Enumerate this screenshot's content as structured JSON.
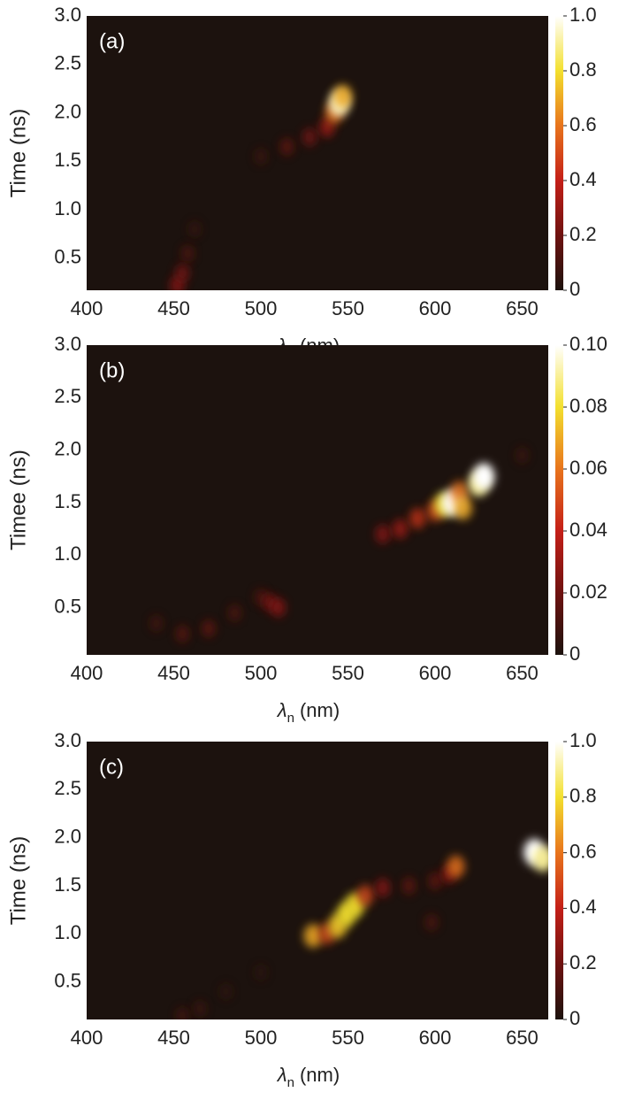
{
  "chart_data": [
    {
      "type": "heatmap",
      "annotation": "(a)",
      "x_label_symbol": "λ",
      "x_label_subscript": "n",
      "x_label_unit": "(nm)",
      "y_label": "Time (ns)",
      "xlim": [
        400,
        665
      ],
      "xticks": [
        400,
        450,
        500,
        550,
        600,
        650
      ],
      "ylim": [
        0.17,
        3.0
      ],
      "yticks": [
        0.5,
        {
          "value": 1,
          "label": "1.0"
        },
        1.5,
        {
          "value": 2,
          "label": "2.0"
        },
        2.5,
        {
          "value": 3,
          "label": "3.0"
        }
      ],
      "zlim": [
        0,
        1
      ],
      "zticks": [
        0,
        0.2,
        0.4,
        0.6,
        0.8,
        {
          "value": 1,
          "label": "1.0"
        }
      ],
      "colormap": [
        "#1c120e",
        "#6e1210",
        "#c41f18",
        "#e8741c",
        "#f3e02e",
        "#ffffff"
      ],
      "points": {
        "x": [
          452,
          455,
          458,
          462,
          500,
          515,
          528,
          538,
          542,
          545,
          547
        ],
        "y": [
          0.22,
          0.35,
          0.55,
          0.8,
          1.55,
          1.65,
          1.75,
          1.85,
          2.0,
          2.1,
          2.17
        ],
        "values": [
          0.3,
          0.25,
          0.15,
          0.08,
          0.1,
          0.2,
          0.25,
          0.35,
          0.6,
          0.95,
          0.7
        ]
      }
    },
    {
      "type": "heatmap",
      "annotation": "(b)",
      "x_label_symbol": "λ",
      "x_label_subscript": "n",
      "x_label_unit": "(nm)",
      "y_label": "Timee (ns)",
      "xlim": [
        400,
        665
      ],
      "xticks": [
        400,
        450,
        500,
        550,
        600,
        650
      ],
      "ylim": [
        0.05,
        3.0
      ],
      "yticks": [
        0.5,
        {
          "value": 1,
          "label": "1.0"
        },
        1.5,
        {
          "value": 2,
          "label": "2.0"
        },
        2.5,
        {
          "value": 3,
          "label": "3.0"
        }
      ],
      "zlim": [
        0,
        0.1
      ],
      "zticks": [
        0,
        0.02,
        0.04,
        0.06,
        0.08,
        {
          "value": 0.1,
          "label": "0.10"
        }
      ],
      "colormap": [
        "#1c120e",
        "#6e1210",
        "#c41f18",
        "#e8741c",
        "#f3e02e",
        "#ffffff"
      ],
      "points": {
        "x": [
          440,
          455,
          470,
          485,
          500,
          505,
          510,
          570,
          580,
          590,
          600,
          605,
          610,
          614,
          616,
          625,
          628,
          650
        ],
        "y": [
          0.35,
          0.25,
          0.3,
          0.45,
          0.6,
          0.55,
          0.5,
          1.2,
          1.25,
          1.35,
          1.42,
          1.48,
          1.5,
          1.6,
          1.45,
          1.68,
          1.75,
          1.95
        ],
        "values": [
          0.012,
          0.018,
          0.02,
          0.015,
          0.015,
          0.025,
          0.03,
          0.03,
          0.035,
          0.045,
          0.05,
          0.08,
          0.1,
          0.06,
          0.07,
          0.09,
          0.1,
          0.01
        ]
      }
    },
    {
      "type": "heatmap",
      "annotation": "(c)",
      "x_label_symbol": "λ",
      "x_label_subscript": "n",
      "x_label_unit": "(nm)",
      "y_label": "Time (ns)",
      "xlim": [
        400,
        665
      ],
      "xticks": [
        400,
        450,
        500,
        550,
        600,
        650
      ],
      "ylim": [
        0.11,
        3.0
      ],
      "yticks": [
        0.5,
        {
          "value": 1,
          "label": "1.0"
        },
        1.5,
        {
          "value": 2,
          "label": "2.0"
        },
        2.5,
        {
          "value": 3,
          "label": "3.0"
        }
      ],
      "zlim": [
        0,
        1
      ],
      "zticks": [
        0,
        0.2,
        0.4,
        0.6,
        0.8,
        {
          "value": 1,
          "label": "1.0"
        }
      ],
      "colormap": [
        "#1c120e",
        "#6e1210",
        "#c41f18",
        "#e8741c",
        "#f3e02e",
        "#ffffff"
      ],
      "points": {
        "x": [
          455,
          465,
          480,
          500,
          530,
          538,
          544,
          549,
          554,
          560,
          570,
          585,
          600,
          608,
          612,
          598,
          657,
          662
        ],
        "y": [
          0.15,
          0.22,
          0.4,
          0.6,
          0.98,
          1.0,
          1.08,
          1.2,
          1.3,
          1.4,
          1.48,
          1.5,
          1.55,
          1.62,
          1.7,
          1.12,
          1.85,
          1.78
        ],
        "values": [
          0.12,
          0.1,
          0.06,
          0.05,
          0.7,
          0.5,
          0.75,
          0.8,
          0.8,
          0.5,
          0.3,
          0.2,
          0.2,
          0.3,
          0.6,
          0.15,
          1.0,
          0.9
        ]
      }
    }
  ]
}
